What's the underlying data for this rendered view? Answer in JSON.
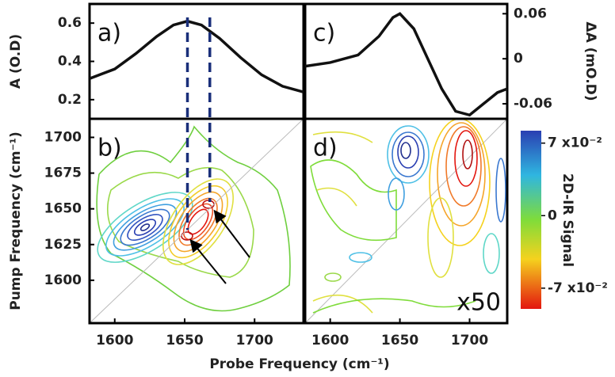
{
  "chart_data": [
    {
      "type": "line",
      "label": "a)",
      "ylabel": "A (O.D)",
      "color": "#111111",
      "x": [
        1582,
        1600,
        1615,
        1630,
        1642,
        1652,
        1662,
        1675,
        1690,
        1705,
        1720,
        1735
      ],
      "values": [
        0.31,
        0.36,
        0.44,
        0.53,
        0.59,
        0.61,
        0.59,
        0.52,
        0.42,
        0.33,
        0.27,
        0.24
      ],
      "xlim": [
        1582,
        1735
      ],
      "ylim": [
        0.1,
        0.7
      ],
      "yticks": [
        0.2,
        0.4,
        0.6
      ],
      "dashed_x": [
        1652,
        1668
      ],
      "dashed_color": "#1a2f7a"
    },
    {
      "type": "contour",
      "label": "b)",
      "ylabel": "Pump Frequency (cm⁻¹)",
      "xlabel": "Probe Frequency (cm⁻¹)",
      "xlim": [
        1582,
        1735
      ],
      "ylim": [
        1570,
        1713
      ],
      "xticks": [
        1600,
        1650,
        1700
      ],
      "yticks": [
        1600,
        1625,
        1650,
        1675,
        1700
      ]
    },
    {
      "type": "line",
      "label": "c)",
      "ylabel": "ΔA (mO.D)",
      "color": "#111111",
      "x": [
        1582,
        1600,
        1620,
        1635,
        1645,
        1650,
        1660,
        1670,
        1680,
        1690,
        1700,
        1710,
        1720,
        1727
      ],
      "values": [
        -0.01,
        -0.005,
        0.005,
        0.03,
        0.055,
        0.06,
        0.04,
        0.0,
        -0.04,
        -0.07,
        -0.075,
        -0.06,
        -0.045,
        -0.04
      ],
      "xlim": [
        1582,
        1727
      ],
      "ylim": [
        -0.08,
        0.073
      ],
      "yticks": [
        -0.06,
        0,
        0.06
      ]
    },
    {
      "type": "contour",
      "label": "d)",
      "annotation": "x50",
      "xlim": [
        1582,
        1727
      ],
      "ylim": [
        1570,
        1713
      ],
      "xticks": [
        1600,
        1650,
        1700
      ],
      "colorbar": {
        "label": "2D-IR Signal",
        "lim": [
          -0.09,
          0.082
        ],
        "ticks": [
          {
            "value": 0.07,
            "label": "7 x10⁻²"
          },
          0,
          {
            "value": -0.07,
            "label": "-7 x10⁻²"
          }
        ]
      }
    }
  ]
}
